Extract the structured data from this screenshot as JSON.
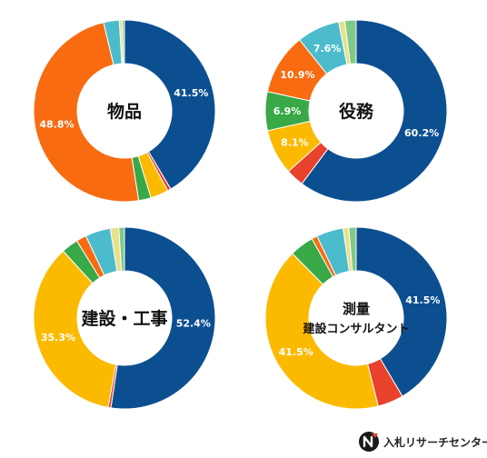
{
  "colors": {
    "blue": "#0c4f91",
    "red": "#e8412c",
    "yellow": "#fbba00",
    "green": "#39a846",
    "orange": "#f86b10",
    "teal": "#4cbccc",
    "pale_yellow": "#e9e08a",
    "pale_green": "#7fca87"
  },
  "brand": {
    "text": "入札リサーチセンター",
    "icon": "brand-logo-icon"
  },
  "chart_data": [
    {
      "type": "pie",
      "title": "物品",
      "donut": true,
      "slices": [
        {
          "value": 41.5,
          "color": "#0c4f91",
          "label": "41.5%"
        },
        {
          "value": 0.6,
          "color": "#e8412c",
          "label": ""
        },
        {
          "value": 3.2,
          "color": "#fbba00",
          "label": ""
        },
        {
          "value": 2.2,
          "color": "#39a846",
          "label": ""
        },
        {
          "value": 48.8,
          "color": "#f86b10",
          "label": "48.8%"
        },
        {
          "value": 2.8,
          "color": "#4cbccc",
          "label": ""
        },
        {
          "value": 0.5,
          "color": "#e9e08a",
          "label": ""
        },
        {
          "value": 0.4,
          "color": "#7fca87",
          "label": ""
        }
      ]
    },
    {
      "type": "pie",
      "title": "役務",
      "donut": true,
      "slices": [
        {
          "value": 60.2,
          "color": "#0c4f91",
          "label": "60.2%"
        },
        {
          "value": 3.2,
          "color": "#e8412c",
          "label": ""
        },
        {
          "value": 8.1,
          "color": "#fbba00",
          "label": "8.1%"
        },
        {
          "value": 6.9,
          "color": "#39a846",
          "label": "6.9%"
        },
        {
          "value": 10.9,
          "color": "#f86b10",
          "label": "10.9%"
        },
        {
          "value": 7.6,
          "color": "#4cbccc",
          "label": "7.6%"
        },
        {
          "value": 1.1,
          "color": "#e9e08a",
          "label": ""
        },
        {
          "value": 2.0,
          "color": "#7fca87",
          "label": ""
        }
      ]
    },
    {
      "type": "pie",
      "title": "建設・工事",
      "donut": true,
      "slices": [
        {
          "value": 52.4,
          "color": "#0c4f91",
          "label": "52.4%"
        },
        {
          "value": 0.5,
          "color": "#e8412c",
          "label": ""
        },
        {
          "value": 35.3,
          "color": "#fbba00",
          "label": "35.3%"
        },
        {
          "value": 3.0,
          "color": "#39a846",
          "label": ""
        },
        {
          "value": 1.8,
          "color": "#f86b10",
          "label": ""
        },
        {
          "value": 4.5,
          "color": "#4cbccc",
          "label": ""
        },
        {
          "value": 1.5,
          "color": "#e9e08a",
          "label": ""
        },
        {
          "value": 1.0,
          "color": "#7fca87",
          "label": ""
        }
      ]
    },
    {
      "type": "pie",
      "title_lines": [
        "測量",
        "建設コンサルタント"
      ],
      "donut": true,
      "slices": [
        {
          "value": 41.5,
          "color": "#0c4f91",
          "label": "41.5%"
        },
        {
          "value": 4.6,
          "color": "#e8412c",
          "label": ""
        },
        {
          "value": 41.5,
          "color": "#fbba00",
          "label": "41.5%"
        },
        {
          "value": 4.3,
          "color": "#39a846",
          "label": ""
        },
        {
          "value": 1.0,
          "color": "#f86b10",
          "label": ""
        },
        {
          "value": 4.8,
          "color": "#4cbccc",
          "label": ""
        },
        {
          "value": 1.0,
          "color": "#e9e08a",
          "label": ""
        },
        {
          "value": 1.3,
          "color": "#7fca87",
          "label": ""
        }
      ]
    }
  ]
}
